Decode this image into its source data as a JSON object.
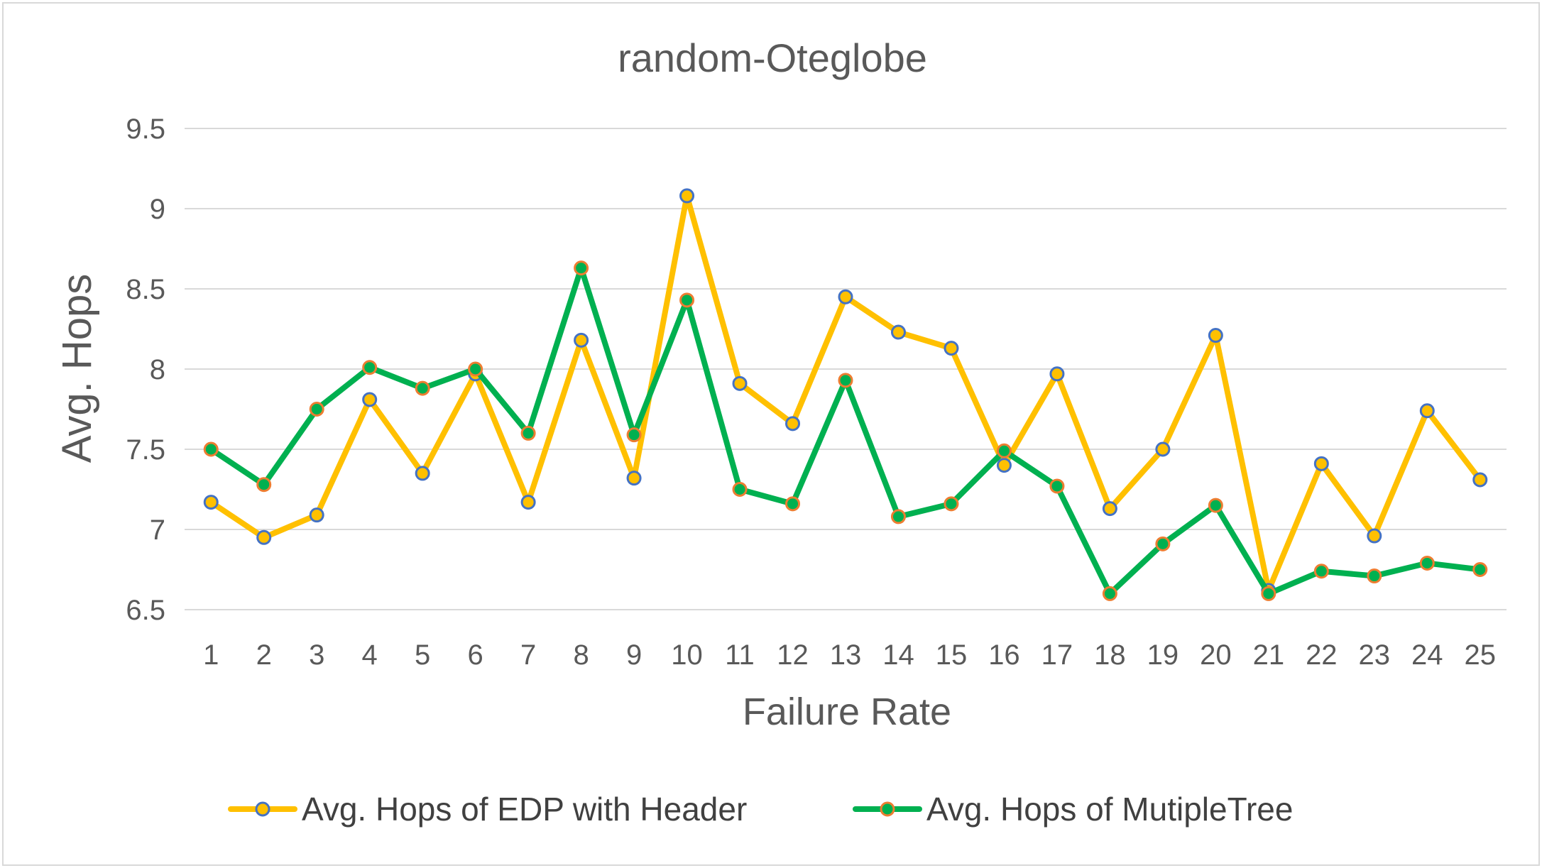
{
  "chart_data": {
    "type": "line",
    "title": "random-Oteglobe",
    "xlabel": "Failure Rate",
    "ylabel": "Avg. Hops",
    "ylim": [
      6.5,
      9.5
    ],
    "yticks": [
      "6.5",
      "7",
      "7.5",
      "8",
      "8.5",
      "9",
      "9.5"
    ],
    "categories": [
      "1",
      "2",
      "3",
      "4",
      "5",
      "6",
      "7",
      "8",
      "9",
      "10",
      "11",
      "12",
      "13",
      "14",
      "15",
      "16",
      "17",
      "18",
      "19",
      "20",
      "21",
      "22",
      "23",
      "24",
      "25"
    ],
    "grid": "horizontal",
    "legend_position": "bottom",
    "series": [
      {
        "name": "Avg. Hops of EDP with Header",
        "color": "#ffc000",
        "marker_fill": "#ffc000",
        "marker_edge": "#4472c4",
        "values": [
          7.17,
          6.95,
          7.09,
          7.81,
          7.35,
          7.97,
          7.17,
          8.18,
          7.32,
          9.08,
          7.91,
          7.66,
          8.45,
          8.23,
          8.13,
          7.4,
          7.97,
          7.13,
          7.5,
          8.21,
          6.62,
          7.41,
          6.96,
          7.74,
          7.31
        ]
      },
      {
        "name": "Avg. Hops of MutipleTree",
        "color": "#00b050",
        "marker_fill": "#00b050",
        "marker_edge": "#ed7d31",
        "values": [
          7.5,
          7.28,
          7.75,
          8.01,
          7.88,
          8.0,
          7.6,
          8.63,
          7.59,
          8.43,
          7.25,
          7.16,
          7.93,
          7.08,
          7.16,
          7.49,
          7.27,
          6.6,
          6.91,
          7.15,
          6.6,
          6.74,
          6.71,
          6.79,
          6.75
        ]
      }
    ]
  }
}
